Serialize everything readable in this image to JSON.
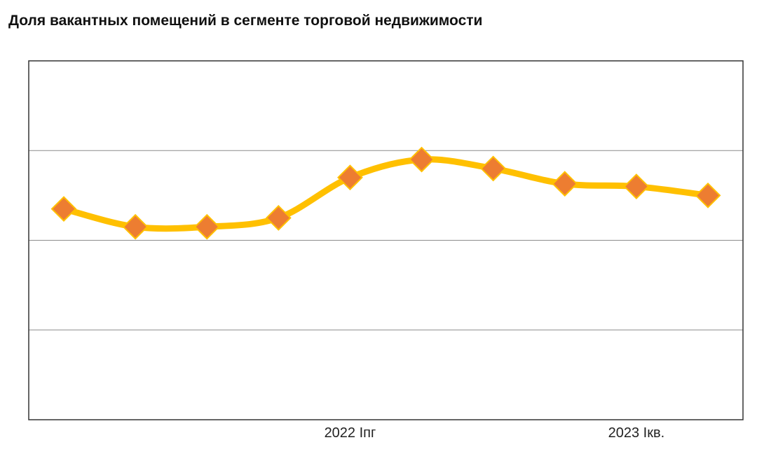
{
  "chart_data": {
    "type": "line",
    "title": "Доля вакантных помещений в сегменте торговой недвижимости",
    "xlabel": "",
    "ylabel": "",
    "categories": [
      "",
      "",
      "",
      "",
      "2022 Iпг",
      "",
      "",
      "",
      "2023 Iкв.",
      ""
    ],
    "series": [
      {
        "values": [
          2.35,
          2.15,
          2.15,
          2.25,
          2.7,
          2.9,
          2.8,
          2.63,
          2.6,
          2.5
        ]
      }
    ],
    "ylim": [
      0,
      4
    ],
    "gridlines": [
      1,
      2,
      3
    ],
    "grid": true,
    "legend": "none",
    "line_color": "#FFC000",
    "marker_color": "#ED7D31",
    "marker_shape": "diamond"
  }
}
